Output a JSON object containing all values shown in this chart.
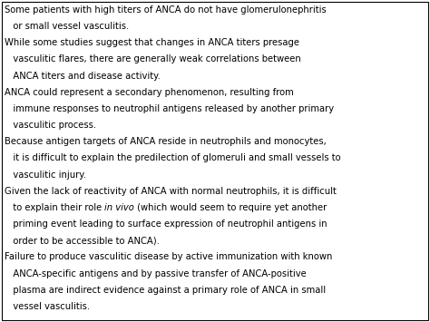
{
  "background_color": "#ffffff",
  "border_color": "#000000",
  "text_color": "#000000",
  "font_size": 7.2,
  "figsize": [
    4.74,
    3.55
  ],
  "dpi": 100,
  "lines": [
    {
      "segments": [
        [
          "Some patients with high titers of ANCA do not have glomerulonephritis",
          false
        ]
      ]
    },
    {
      "segments": [
        [
          "   or small vessel vasculitis.",
          false
        ]
      ]
    },
    {
      "segments": [
        [
          "While some studies suggest that changes in ANCA titers presage",
          false
        ]
      ]
    },
    {
      "segments": [
        [
          "   vasculitic flares, there are generally weak correlations between",
          false
        ]
      ]
    },
    {
      "segments": [
        [
          "   ANCA titers and disease activity.",
          false
        ]
      ]
    },
    {
      "segments": [
        [
          "ANCA could represent a secondary phenomenon, resulting from",
          false
        ]
      ]
    },
    {
      "segments": [
        [
          "   immune responses to neutrophil antigens released by another primary",
          false
        ]
      ]
    },
    {
      "segments": [
        [
          "   vasculitic process.",
          false
        ]
      ]
    },
    {
      "segments": [
        [
          "Because antigen targets of ANCA reside in neutrophils and monocytes,",
          false
        ]
      ]
    },
    {
      "segments": [
        [
          "   it is difficult to explain the predilection of glomeruli and small vessels to",
          false
        ]
      ]
    },
    {
      "segments": [
        [
          "   vasculitic injury.",
          false
        ]
      ]
    },
    {
      "segments": [
        [
          "Given the lack of reactivity of ANCA with normal neutrophils, it is difficult",
          false
        ]
      ]
    },
    {
      "segments": [
        [
          "   to explain their role ",
          false
        ],
        [
          "in vivo",
          true
        ],
        [
          " (which would seem to require yet another",
          false
        ]
      ]
    },
    {
      "segments": [
        [
          "   priming event leading to surface expression of neutrophil antigens in",
          false
        ]
      ]
    },
    {
      "segments": [
        [
          "   order to be accessible to ANCA).",
          false
        ]
      ]
    },
    {
      "segments": [
        [
          "Failure to produce vasculitic disease by active immunization with known",
          false
        ]
      ]
    },
    {
      "segments": [
        [
          "   ANCA-specific antigens and by passive transfer of ANCA-positive",
          false
        ]
      ]
    },
    {
      "segments": [
        [
          "   plasma are indirect evidence against a primary role of ANCA in small",
          false
        ]
      ]
    },
    {
      "segments": [
        [
          "   vessel vasculitis.",
          false
        ]
      ]
    }
  ]
}
